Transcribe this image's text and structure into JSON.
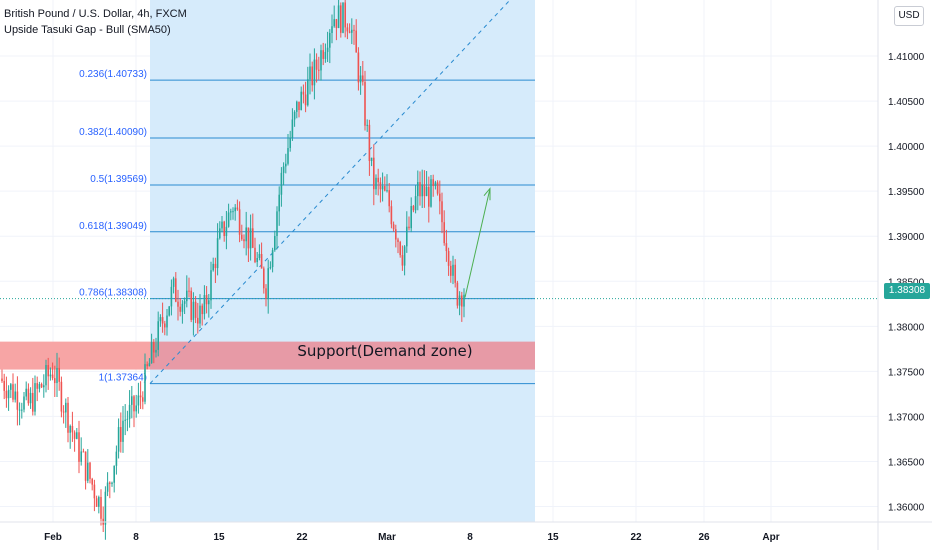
{
  "legend": {
    "symbol": "British Pound / U.S. Dollar, 4h, FXCM",
    "indicator": "Upside Tasuki Gap - Bull (SMA50)"
  },
  "currency_button": "USD",
  "last_price": "1.38308",
  "zone_label": "Support(Demand zone)",
  "colors": {
    "up": "#26a69a",
    "down": "#ef5350",
    "fib_line": "#2a8bd0",
    "fib_label": "#2962ff",
    "range_fill": "#d6ebfb",
    "zone_fill": "#e79aa6",
    "arrow": "#4caf50"
  },
  "chart_data": {
    "type": "candlestick",
    "y_range": [
      1.3585,
      1.416
    ],
    "y_ticks": [
      "1.41000",
      "1.40500",
      "1.40000",
      "1.39500",
      "1.39000",
      "1.38500",
      "1.38000",
      "1.37500",
      "1.37000",
      "1.36500",
      "1.36000"
    ],
    "y_tick_values": [
      1.41,
      1.405,
      1.4,
      1.395,
      1.39,
      1.385,
      1.38,
      1.375,
      1.37,
      1.365,
      1.36
    ],
    "x_ticks": [
      "Feb",
      "8",
      "15",
      "22",
      "Mar",
      "8",
      "15",
      "22",
      "26",
      "Apr"
    ],
    "fib_levels": [
      {
        "label": "0.236(1.40733)",
        "value": 1.40733
      },
      {
        "label": "0.382(1.40090)",
        "value": 1.4009
      },
      {
        "label": "0.5(1.39569)",
        "value": 1.39569
      },
      {
        "label": "0.618(1.39049)",
        "value": 1.39049
      },
      {
        "label": "0.786(1.38308)",
        "value": 1.38308
      },
      {
        "label": "1(1.37364)",
        "value": 1.37364
      }
    ],
    "demand_zone": {
      "low": 1.3752,
      "high": 1.3783
    },
    "last_price": 1.38308
  }
}
